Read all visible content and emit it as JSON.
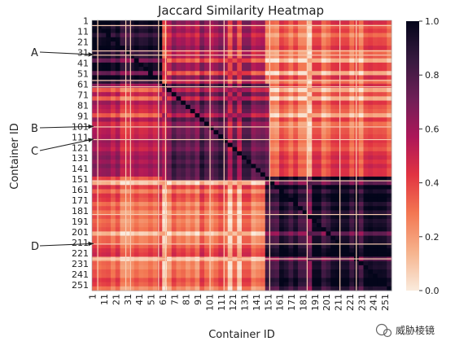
{
  "chart_data": {
    "type": "heatmap",
    "title": "Jaccard Similarity Heatmap",
    "xlabel": "Container ID",
    "ylabel": "Container ID",
    "x_ticks": [
      "1",
      "11",
      "21",
      "31",
      "41",
      "51",
      "61",
      "71",
      "81",
      "91",
      "101",
      "111",
      "121",
      "131",
      "141",
      "151",
      "161",
      "171",
      "181",
      "191",
      "201",
      "211",
      "221",
      "231",
      "241",
      "251"
    ],
    "y_ticks": [
      "1",
      "11",
      "21",
      "31",
      "41",
      "51",
      "61",
      "71",
      "81",
      "91",
      "101",
      "111",
      "121",
      "131",
      "141",
      "151",
      "161",
      "171",
      "181",
      "191",
      "201",
      "211",
      "221",
      "231",
      "241",
      "251"
    ],
    "n_containers": 256,
    "colorbar": {
      "range": [
        0.0,
        1.0
      ],
      "ticks": [
        "0.0",
        "0.2",
        "0.4",
        "0.6",
        "0.8",
        "1.0"
      ],
      "colormap": "rocket_r",
      "colors": [
        "#faebdd",
        "#f6b48e",
        "#f37651",
        "#e13342",
        "#ad1759",
        "#701f57",
        "#35193e",
        "#03051a"
      ]
    },
    "blocks": [
      {
        "rows": [
          1,
          60
        ],
        "cols": [
          1,
          60
        ],
        "similarity": 0.95
      },
      {
        "rows": [
          60,
          150
        ],
        "cols": [
          60,
          150
        ],
        "similarity": 0.78
      },
      {
        "rows": [
          150,
          256
        ],
        "cols": [
          150,
          256
        ],
        "similarity": 0.95
      },
      {
        "rows": [
          150,
          256
        ],
        "cols": [
          1,
          150
        ],
        "similarity": 0.35
      },
      {
        "rows": [
          1,
          150
        ],
        "cols": [
          150,
          256
        ],
        "similarity": 0.35
      },
      {
        "rows": [
          1,
          60
        ],
        "cols": [
          60,
          150
        ],
        "similarity": 0.62
      },
      {
        "rows": [
          60,
          150
        ],
        "cols": [
          1,
          60
        ],
        "similarity": 0.55
      }
    ],
    "annotations": [
      {
        "label": "A",
        "target_row": 33
      },
      {
        "label": "B",
        "target_row": 101
      },
      {
        "label": "C",
        "target_row": 113
      },
      {
        "label": "D",
        "target_row": 212
      }
    ]
  },
  "watermark": "威胁棱镜"
}
